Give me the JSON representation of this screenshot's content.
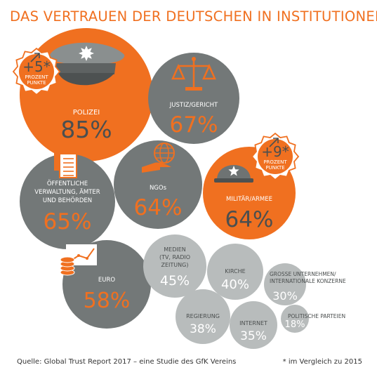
{
  "title": "DAS VERTRAUEN DER DEUTSCHEN IN INSTITUTIONEN",
  "source": "Quelle: Global Trust Report 2017 – eine Studie des GfK Vereins",
  "footnote": "* im Vergleich zu 2015",
  "colors": {
    "orange": "#f07020",
    "dark_gray": "#737878",
    "light_gray": "#b8bcbc",
    "white": "#ffffff",
    "gray_text": "#4a4e4e",
    "title": "#f07020"
  },
  "chart_data": {
    "type": "bubble",
    "title": "DAS VERTRAUEN DER DEUTSCHEN IN INSTITUTIONEN",
    "unit": "%",
    "items": [
      {
        "label": [
          "POLIZEI"
        ],
        "value": 85,
        "value_label": "85%",
        "style": "orange",
        "icon": "police-cap-icon"
      },
      {
        "label": [
          "JUSTIZ/GERICHT"
        ],
        "value": 67,
        "value_label": "67%",
        "style": "dark",
        "icon": "scales-icon"
      },
      {
        "label": [
          "ÖFFENTLICHE",
          "VERWALTUNG, ÄMTER",
          "UND BEHÖRDEN"
        ],
        "value": 65,
        "value_label": "65%",
        "style": "dark",
        "icon": "documents-icon"
      },
      {
        "label": [
          "NGOs"
        ],
        "value": 64,
        "value_label": "64%",
        "style": "dark",
        "icon": "globe-hand-icon"
      },
      {
        "label": [
          "MILITÄR/ARMEE"
        ],
        "value": 64,
        "value_label": "64%",
        "style": "orange",
        "icon": "helmet-icon"
      },
      {
        "label": [
          "EURO"
        ],
        "value": 58,
        "value_label": "58%",
        "style": "dark",
        "icon": "coins-chart-icon"
      },
      {
        "label": [
          "MEDIEN",
          "(TV, RADIO",
          "ZEITUNG)"
        ],
        "value": 45,
        "value_label": "45%",
        "style": "light"
      },
      {
        "label": [
          "KIRCHE"
        ],
        "value": 40,
        "value_label": "40%",
        "style": "light"
      },
      {
        "label": [
          "REGIERUNG"
        ],
        "value": 38,
        "value_label": "38%",
        "style": "light"
      },
      {
        "label": [
          "INTERNET"
        ],
        "value": 35,
        "value_label": "35%",
        "style": "light"
      },
      {
        "label": [
          "GROSSE UNTERNEHMEN/",
          "INTERNATIONALE KONZERNE"
        ],
        "value": 30,
        "value_label": "30%",
        "style": "light"
      },
      {
        "label": [
          "POLITISCHE PARTEIEN"
        ],
        "value": 18,
        "value_label": "18%",
        "style": "light"
      }
    ],
    "badges": [
      {
        "for": "POLIZEI",
        "change": 5,
        "value_label": "+5*",
        "lines": [
          "PROZENT",
          "PUNKTE"
        ]
      },
      {
        "for": "MILITÄR/ARMEE",
        "change": 9,
        "value_label": "+9*",
        "lines": [
          "PROZENT",
          "PUNKTE"
        ]
      }
    ]
  }
}
